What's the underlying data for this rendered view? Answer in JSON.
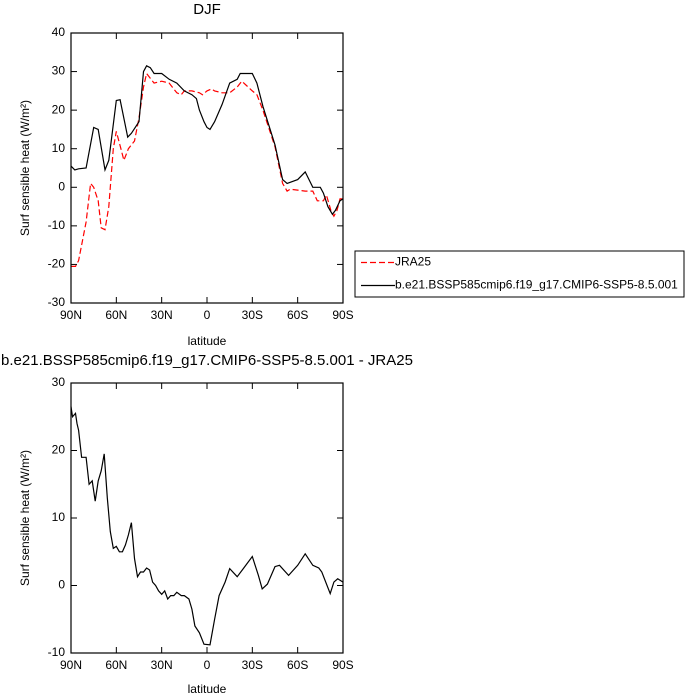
{
  "chart_data": [
    {
      "type": "line",
      "title": "DJF",
      "xlabel": "latitude",
      "ylabel": "Surf sensible heat (W/m²)",
      "xlim": [
        90,
        -90
      ],
      "ylim": [
        -30,
        40
      ],
      "xticks": [
        {
          "value": 90,
          "label": "90N"
        },
        {
          "value": 60,
          "label": "60N"
        },
        {
          "value": 30,
          "label": "30N"
        },
        0,
        {
          "value": -30,
          "label": "30S"
        },
        {
          "value": -60,
          "label": "60S"
        },
        {
          "value": -90,
          "label": "90S"
        }
      ],
      "yticks": [
        -30,
        -20,
        -10,
        0,
        10,
        20,
        30,
        40
      ],
      "legend": "right",
      "series": [
        {
          "name": "JRA25",
          "color": "#ff0000",
          "dashed": true,
          "x": [
            90,
            87,
            85,
            80,
            77,
            75,
            72,
            70,
            67.5,
            65,
            62,
            60,
            57,
            55,
            52,
            48,
            45,
            42,
            40,
            37,
            35,
            30,
            25,
            20,
            17,
            15,
            10,
            5,
            3,
            0,
            -3,
            -5,
            -10,
            -15,
            -20,
            -23,
            -30,
            -33,
            -37,
            -45,
            -50,
            -53,
            -55,
            -65,
            -70,
            -73,
            -77,
            -79,
            -82,
            -84,
            -86,
            -88,
            -90
          ],
          "values": [
            -20.5,
            -20.5,
            -19,
            -9,
            1,
            0,
            -3.5,
            -10.5,
            -11,
            -5,
            10,
            14.5,
            10,
            7,
            10,
            12,
            18,
            26,
            29.5,
            28,
            27,
            27.5,
            27,
            24.5,
            24,
            25,
            25,
            24.5,
            24,
            25,
            25.5,
            25,
            24.5,
            24.5,
            26,
            27.5,
            25,
            24,
            20,
            10.5,
            1,
            -1,
            -0.5,
            -1,
            -1,
            -3.5,
            -3.5,
            -2,
            -6,
            -7.5,
            -6,
            -3,
            -3
          ]
        },
        {
          "name": "b.e21.BSSP585cmip6.f19_g17.CMIP6-SSP5-8.5.001",
          "color": "#000000",
          "dashed": false,
          "x": [
            90,
            87.5,
            85,
            80,
            75,
            72,
            67.5,
            65,
            60,
            57.5,
            52.5,
            50,
            45,
            42,
            40,
            37.5,
            35,
            30,
            25,
            20,
            15,
            10,
            7,
            5,
            2,
            0,
            -2,
            -5,
            -10,
            -15,
            -20,
            -22,
            -30,
            -33,
            -37,
            -45,
            -50,
            -53,
            -60,
            -65,
            -70,
            -75,
            -77,
            -80,
            -83,
            -85,
            -88,
            -90
          ],
          "values": [
            5.5,
            4.5,
            4.8,
            5,
            15.5,
            15,
            4.5,
            7,
            22.5,
            22.7,
            13,
            14,
            17,
            30,
            31.5,
            31,
            29.5,
            29.5,
            28,
            27,
            25,
            24,
            23,
            20,
            17,
            15.5,
            15,
            17,
            21.5,
            27,
            28,
            29.5,
            29.5,
            27,
            21,
            11,
            2,
            1,
            2,
            4,
            0,
            0,
            -1.5,
            -5,
            -7,
            -6,
            -3.5,
            -3
          ]
        }
      ]
    },
    {
      "type": "line",
      "title": "b.e21.BSSP585cmip6.f19_g17.CMIP6-SSP5-8.5.001 - JRA25",
      "xlabel": "latitude",
      "ylabel": "Surf sensible heat (W/m²)",
      "xlim": [
        90,
        -90
      ],
      "ylim": [
        -10,
        30
      ],
      "xticks": [
        {
          "value": 90,
          "label": "90N"
        },
        {
          "value": 60,
          "label": "60N"
        },
        {
          "value": 30,
          "label": "30N"
        },
        0,
        {
          "value": -30,
          "label": "30S"
        },
        {
          "value": -60,
          "label": "60S"
        },
        {
          "value": -90,
          "label": "90S"
        }
      ],
      "yticks": [
        -10,
        0,
        10,
        20,
        30
      ],
      "color": "#000000",
      "x": [
        90,
        89,
        87,
        86,
        85,
        83,
        80,
        78,
        76,
        74,
        72,
        70,
        68,
        66,
        64,
        62,
        60,
        58,
        56,
        54,
        52,
        50,
        48,
        46,
        44,
        42,
        40,
        38,
        36,
        34,
        32,
        30,
        28,
        26,
        24,
        22,
        20,
        17,
        15,
        12,
        10,
        8,
        5,
        2,
        -2,
        -5,
        -8,
        -12,
        -15,
        -20,
        -24,
        -30,
        -34,
        -36.5,
        -40,
        -45,
        -48,
        -54,
        -60,
        -65,
        -70,
        -74,
        -76,
        -81.5,
        -84,
        -86.5,
        -90
      ],
      "values": [
        26.5,
        25,
        25.5,
        24,
        23,
        19,
        19,
        15,
        15.5,
        12.5,
        15.5,
        17,
        19.5,
        13,
        8,
        5.5,
        5.8,
        5,
        5,
        6,
        7.5,
        9.3,
        4,
        1.3,
        2,
        2,
        2.6,
        2.3,
        0.5,
        0,
        -0.8,
        -1.3,
        -0.8,
        -2,
        -1.5,
        -1.5,
        -1,
        -1.5,
        -1.5,
        -2,
        -3.5,
        -6,
        -7,
        -8.7,
        -8.8,
        -5,
        -1.5,
        0.5,
        2.5,
        1.3,
        2.5,
        4.3,
        1.5,
        -0.5,
        0.2,
        2.8,
        3,
        1.5,
        3,
        4.7,
        3,
        2.6,
        2,
        -1.2,
        0.5,
        1,
        0.5
      ]
    }
  ]
}
